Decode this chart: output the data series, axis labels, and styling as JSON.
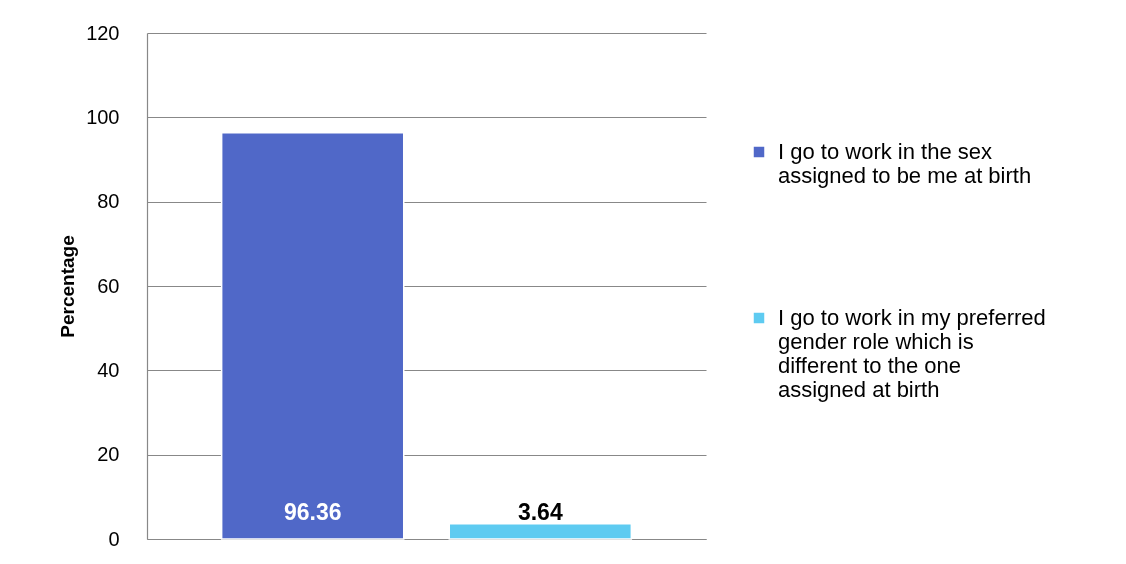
{
  "chart_data": {
    "type": "bar",
    "ylabel": "Percentage",
    "categories": [
      null
    ],
    "series": [
      {
        "name": "I go to work in the sex assigned to be me at birth",
        "color": "#5068c8",
        "values": [
          96.36
        ]
      },
      {
        "name": "I go to work in my preferred gender role which is different to the one assigned at birth",
        "color": "#5ecbf1",
        "values": [
          3.64
        ]
      }
    ],
    "ylim": [
      0,
      120
    ],
    "yticks": [
      0,
      20,
      40,
      60,
      80,
      100,
      120
    ],
    "grid": "y",
    "legend": "right",
    "data_labels": true,
    "tick_labels": "y"
  }
}
